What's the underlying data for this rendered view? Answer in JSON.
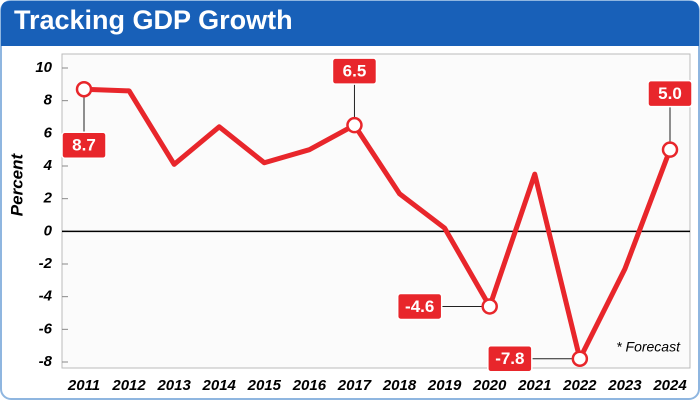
{
  "chart_data": {
    "type": "line",
    "title": "Tracking GDP Growth",
    "y_label": "Percent",
    "annotation": "* Forecast",
    "categories": [
      "2011",
      "2012",
      "2013",
      "2014",
      "2015",
      "2016",
      "2017",
      "2018",
      "2019",
      "2020",
      "2021",
      "2022",
      "2023",
      "2024"
    ],
    "values": [
      8.7,
      8.6,
      4.1,
      6.4,
      4.2,
      5.0,
      6.5,
      2.3,
      0.2,
      -4.6,
      3.5,
      -7.8,
      -2.3,
      5.0
    ],
    "value_labels": [
      "8.7",
      null,
      null,
      null,
      null,
      null,
      "6.5",
      null,
      null,
      "-4.6",
      null,
      "-7.8",
      null,
      "5.0"
    ],
    "color": "#e8262b",
    "ylim": [
      -8,
      10
    ],
    "yticks": [
      10,
      8,
      6,
      4,
      2,
      0,
      -2,
      -4,
      -6,
      -8
    ]
  }
}
